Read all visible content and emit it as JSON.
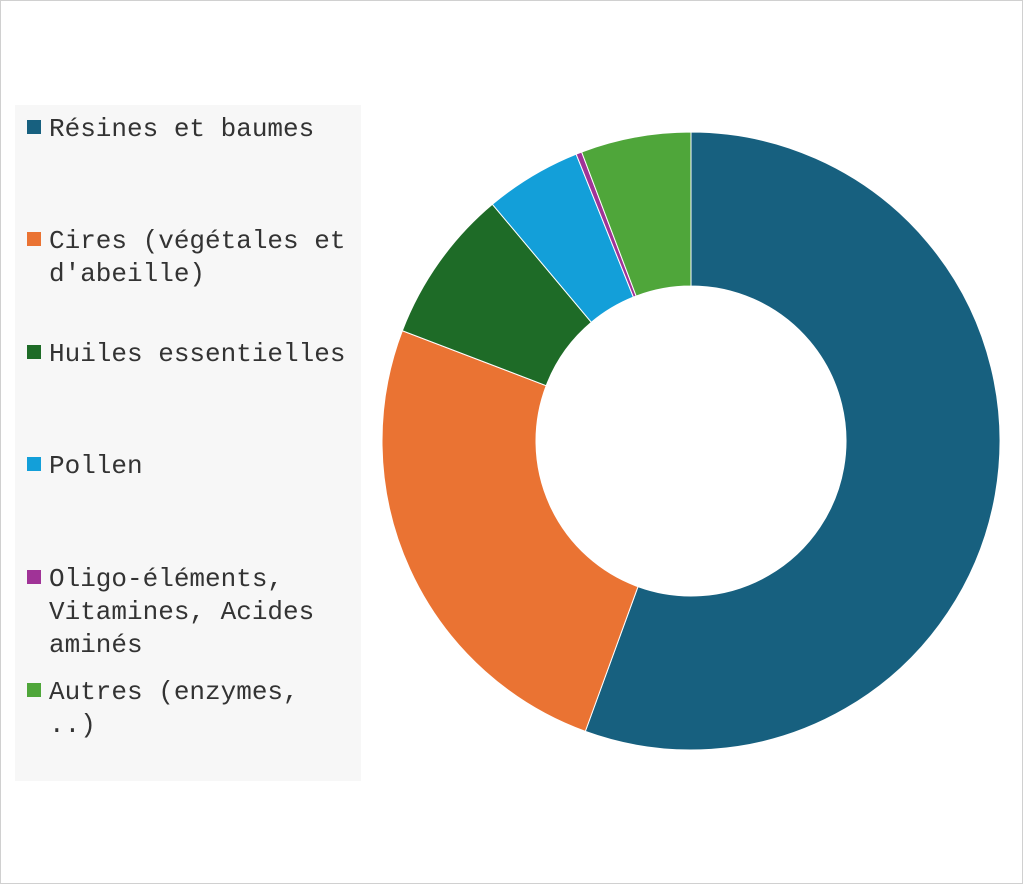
{
  "chart_data": {
    "type": "pie",
    "variant": "donut",
    "legend_position": "left",
    "categories": [
      "Résines et baumes",
      "Cires (végétales et d'abeille)",
      "Huiles essentielles",
      "Pollen",
      "Oligo-éléments, Vitamines, Acides aminés",
      "Autres (enzymes, ..)"
    ],
    "values": [
      55,
      25,
      8,
      5,
      0.3,
      5.7
    ],
    "colors": [
      "#17607f",
      "#ea7333",
      "#1e6b27",
      "#139fd9",
      "#a03397",
      "#4fa63a"
    ],
    "start_angle_deg": 0,
    "direction": "clockwise"
  }
}
